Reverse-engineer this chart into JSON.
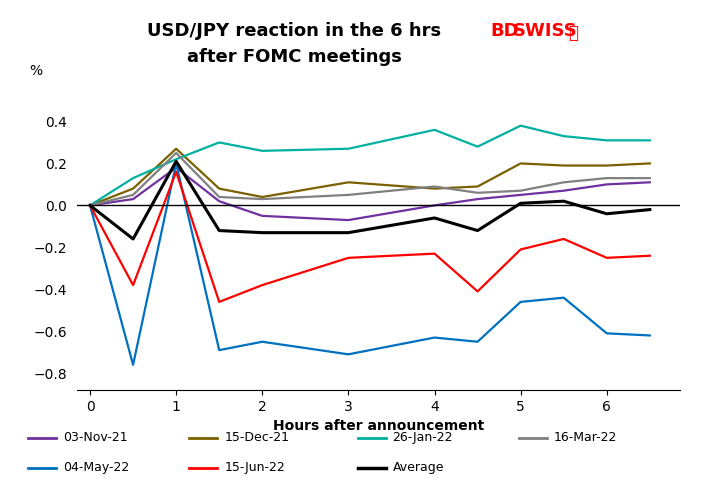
{
  "title_line1": "USD/JPY reaction in the 6 hrs",
  "title_line2": "after FOMC meetings",
  "xlabel": "Hours after announcement",
  "ylabel_label": "%",
  "xlim": [
    -0.15,
    6.85
  ],
  "ylim": [
    -0.88,
    0.55
  ],
  "yticks": [
    -0.8,
    -0.6,
    -0.4,
    -0.2,
    0.0,
    0.2,
    0.4
  ],
  "xticks": [
    0,
    1,
    2,
    3,
    4,
    5,
    6
  ],
  "x": [
    0,
    0.5,
    1,
    1.5,
    2,
    3,
    4,
    4.5,
    5,
    5.5,
    6,
    6.5
  ],
  "series": {
    "03-Nov-21": {
      "color": "#7030A0",
      "values": [
        0.0,
        0.03,
        0.18,
        0.02,
        -0.05,
        -0.07,
        0.0,
        0.03,
        0.05,
        0.07,
        0.1,
        0.11
      ]
    },
    "15-Dec-21": {
      "color": "#7B6000",
      "values": [
        0.0,
        0.08,
        0.27,
        0.08,
        0.04,
        0.11,
        0.08,
        0.09,
        0.2,
        0.19,
        0.19,
        0.2
      ]
    },
    "26-Jan-22": {
      "color": "#00B0A0",
      "values": [
        0.0,
        0.13,
        0.22,
        0.3,
        0.26,
        0.27,
        0.36,
        0.28,
        0.38,
        0.33,
        0.31,
        0.31
      ]
    },
    "16-Mar-22": {
      "color": "#808080",
      "values": [
        0.0,
        0.05,
        0.25,
        0.04,
        0.03,
        0.05,
        0.09,
        0.06,
        0.07,
        0.11,
        0.13,
        0.13
      ]
    },
    "04-May-22": {
      "color": "#0070C0",
      "values": [
        0.0,
        -0.76,
        0.2,
        -0.69,
        -0.65,
        -0.71,
        -0.63,
        -0.65,
        -0.46,
        -0.44,
        -0.61,
        -0.62
      ]
    },
    "15-Jun-22": {
      "color": "#FF0000",
      "values": [
        0.0,
        -0.38,
        0.16,
        -0.46,
        -0.38,
        -0.25,
        -0.23,
        -0.41,
        -0.21,
        -0.16,
        -0.25,
        -0.24
      ]
    },
    "Average": {
      "color": "#000000",
      "values": [
        0.0,
        -0.16,
        0.21,
        -0.12,
        -0.13,
        -0.13,
        -0.06,
        -0.12,
        0.01,
        0.02,
        -0.04,
        -0.02
      ]
    }
  },
  "bd_color": "#FF0000",
  "swiss_color": "#FF0000",
  "background_color": "#FFFFFF",
  "title_fontsize": 13,
  "axis_fontsize": 10,
  "tick_fontsize": 10,
  "legend_fontsize": 9
}
